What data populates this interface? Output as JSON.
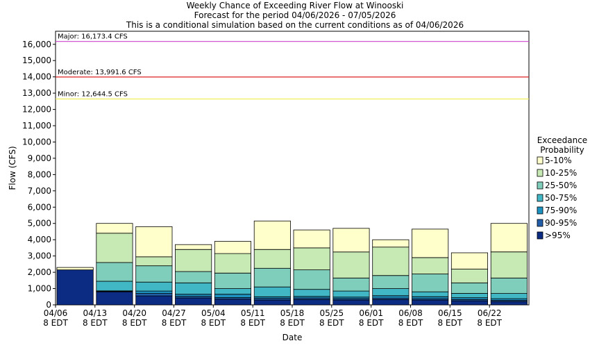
{
  "chart_data": {
    "type": "bar",
    "stacked": true,
    "title_lines": [
      "Weekly Chance of Exceeding River Flow at Winooski",
      "Forecast for the period 04/06/2026 - 07/05/2026",
      "This is a conditional simulation based on the current conditions as of 04/06/2026"
    ],
    "xlabel": "Date",
    "ylabel": "Flow (CFS)",
    "ylim": [
      0,
      16800
    ],
    "yticks": [
      0,
      1000,
      2000,
      3000,
      4000,
      5000,
      6000,
      7000,
      8000,
      9000,
      10000,
      11000,
      12000,
      13000,
      14000,
      15000,
      16000
    ],
    "ytick_labels": [
      "0",
      "1,000",
      "2,000",
      "3,000",
      "4,000",
      "5,000",
      "6,000",
      "7,000",
      "8,000",
      "9,000",
      "10,000",
      "11,000",
      "12,000",
      "13,000",
      "14,000",
      "15,000",
      "16,000"
    ],
    "categories": [
      "04/06",
      "04/13",
      "04/20",
      "04/27",
      "05/04",
      "05/11",
      "05/18",
      "05/25",
      "06/01",
      "06/08",
      "06/15",
      "06/22"
    ],
    "category_sublabel": "8 EDT",
    "legend": {
      "title_lines": [
        "Exceedance",
        "Probability"
      ],
      "position": "right",
      "items": [
        {
          "label": "5-10%",
          "color": "#ffffcc"
        },
        {
          "label": "10-25%",
          "color": "#c7e9b4"
        },
        {
          "label": "25-50%",
          "color": "#7fcdbb"
        },
        {
          "label": "50-75%",
          "color": "#41b6c4"
        },
        {
          "label": "75-90%",
          "color": "#1d91c0"
        },
        {
          "label": "90-95%",
          "color": "#225ea8"
        },
        {
          "label": ">95%",
          "color": "#0c2c84"
        }
      ]
    },
    "boundaries_note": "Cumulative flow (CFS) at each exceedance boundary, ordered from bottom: >95% top, 90-95% top, 75-90% top, 50-75% top, 25-50% top, 10-25% top, 5-10% top",
    "stacks": [
      [
        2150,
        2150,
        2150,
        2150,
        2150,
        2150,
        2300
      ],
      [
        800,
        830,
        860,
        1450,
        2600,
        4400,
        5000
      ],
      [
        550,
        700,
        850,
        1400,
        2400,
        2950,
        4800
      ],
      [
        420,
        520,
        650,
        1350,
        2050,
        3400,
        3700
      ],
      [
        350,
        450,
        650,
        1000,
        1950,
        3150,
        3900
      ],
      [
        300,
        400,
        500,
        1100,
        2250,
        3400,
        5150
      ],
      [
        330,
        420,
        520,
        950,
        2150,
        3500,
        4600
      ],
      [
        300,
        380,
        480,
        850,
        1650,
        3250,
        4700
      ],
      [
        330,
        420,
        560,
        1000,
        1800,
        3550,
        4000
      ],
      [
        300,
        380,
        500,
        800,
        1900,
        2900,
        4650
      ],
      [
        250,
        330,
        440,
        700,
        1350,
        2200,
        3200
      ],
      [
        200,
        280,
        380,
        700,
        1650,
        3250,
        5000
      ]
    ],
    "thresholds": [
      {
        "label": "Major: 16,173.4 CFS",
        "value": 16173.4,
        "color": "#cc44cc"
      },
      {
        "label": "Moderate: 13,991.6 CFS",
        "value": 13991.6,
        "color": "#dd2222"
      },
      {
        "label": "Minor: 12,644.5 CFS",
        "value": 12644.5,
        "color": "#eeee55"
      }
    ],
    "grid": false
  }
}
